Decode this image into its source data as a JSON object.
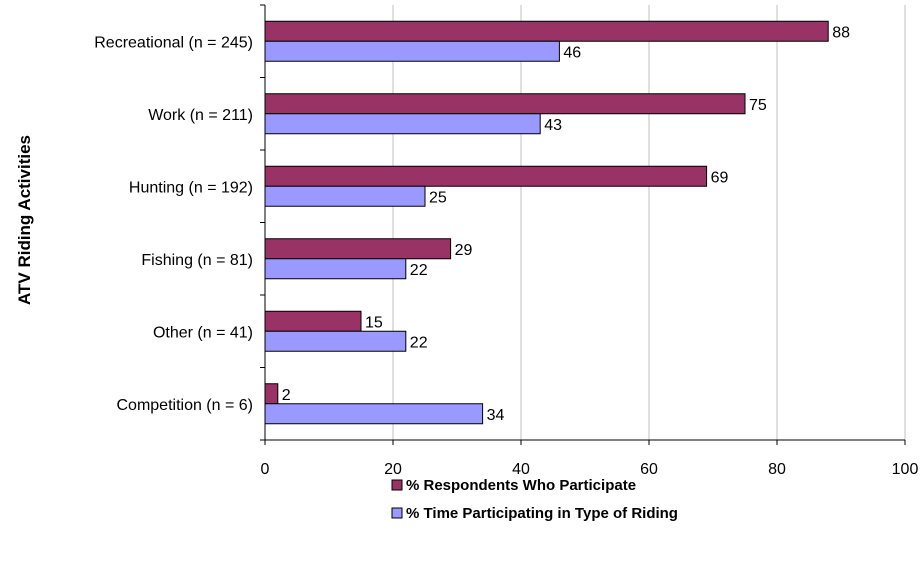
{
  "chart_data": {
    "type": "bar",
    "orientation": "horizontal",
    "categories": [
      "Recreational (n = 245)",
      "Work (n = 211)",
      "Hunting (n = 192)",
      "Fishing (n = 81)",
      "Other (n = 41)",
      "Competition (n = 6)"
    ],
    "series": [
      {
        "name": "% Respondents Who Participate",
        "values": [
          88,
          75,
          69,
          29,
          15,
          2
        ],
        "color": "#993366"
      },
      {
        "name": "% Time Participating in Type of Riding",
        "values": [
          46,
          43,
          25,
          22,
          22,
          34
        ],
        "color": "#9999ff"
      }
    ],
    "ylabel": "ATV Riding Activities",
    "xlim": [
      0,
      100
    ],
    "xticks": [
      0,
      20,
      40,
      60,
      80,
      100
    ],
    "grid": "vertical",
    "legend_position": "bottom"
  }
}
